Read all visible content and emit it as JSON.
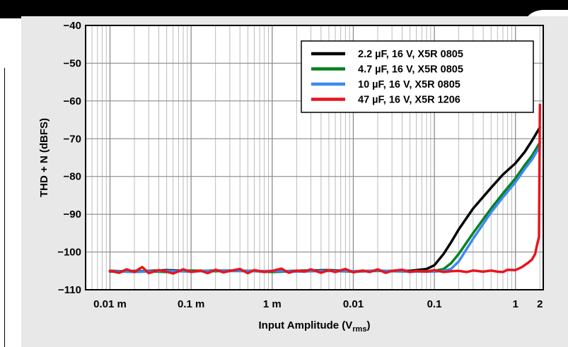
{
  "chart_data": {
    "type": "line",
    "title": "",
    "xlabel": "Input Amplitude (V",
    "xlabel_sub": "rms",
    "xlabel_close": ")",
    "ylabel": "THD + N (dBFS)",
    "x_scale": "log",
    "xlim": [
      5e-06,
      2.2
    ],
    "ylim": [
      -110,
      -40
    ],
    "grid": true,
    "legend_position": "top-right",
    "x_ticks": [
      {
        "value": 1e-05,
        "label": "0.01 m"
      },
      {
        "value": 0.0001,
        "label": "0.1 m"
      },
      {
        "value": 0.001,
        "label": "1 m"
      },
      {
        "value": 0.01,
        "label": "0.01"
      },
      {
        "value": 0.1,
        "label": "0.1"
      },
      {
        "value": 1,
        "label": "1"
      },
      {
        "value": 2,
        "label": "2"
      }
    ],
    "y_ticks": [
      {
        "value": -40,
        "label": "−40"
      },
      {
        "value": -50,
        "label": "−50"
      },
      {
        "value": -60,
        "label": "−60"
      },
      {
        "value": -70,
        "label": "−70"
      },
      {
        "value": -80,
        "label": "−80"
      },
      {
        "value": -90,
        "label": "−90"
      },
      {
        "value": -100,
        "label": "−100"
      },
      {
        "value": -110,
        "label": "−110"
      }
    ],
    "series": [
      {
        "name": "2.2 µF, 16 V, X5R 0805",
        "color": "#000000",
        "x": [
          1e-05,
          2e-05,
          5e-05,
          0.0001,
          0.0002,
          0.0005,
          0.001,
          0.002,
          0.005,
          0.01,
          0.02,
          0.05,
          0.08,
          0.1,
          0.13,
          0.16,
          0.2,
          0.3,
          0.5,
          0.7,
          1.0,
          1.3,
          1.6,
          2.0
        ],
        "y": [
          -105,
          -105.2,
          -104.8,
          -105.1,
          -104.9,
          -105,
          -105.2,
          -105,
          -104.8,
          -105.1,
          -105,
          -105,
          -104.5,
          -103.5,
          -100.5,
          -97.5,
          -94,
          -88.5,
          -83,
          -79.5,
          -76.5,
          -73.5,
          -70.5,
          -67
        ]
      },
      {
        "name": "4.7 µF, 16 V, X5R 0805",
        "color": "#00821e",
        "x": [
          1e-05,
          2e-05,
          5e-05,
          0.0001,
          0.0002,
          0.0005,
          0.001,
          0.002,
          0.005,
          0.01,
          0.02,
          0.05,
          0.1,
          0.13,
          0.16,
          0.2,
          0.3,
          0.5,
          0.7,
          1.0,
          1.3,
          1.6,
          2.0
        ],
        "y": [
          -105.2,
          -105,
          -105.3,
          -104.9,
          -105.1,
          -105,
          -105.3,
          -105.1,
          -105,
          -105.2,
          -105,
          -105.2,
          -105,
          -104.5,
          -103,
          -100.5,
          -95,
          -88.5,
          -84.5,
          -80.5,
          -77,
          -74.5,
          -71
        ]
      },
      {
        "name": "10 µF, 16 V, X5R 0805",
        "color": "#3e88f2",
        "x": [
          1e-05,
          2e-05,
          5e-05,
          0.0001,
          0.0002,
          0.0005,
          0.001,
          0.002,
          0.005,
          0.01,
          0.02,
          0.05,
          0.1,
          0.13,
          0.16,
          0.2,
          0.3,
          0.5,
          0.7,
          1.0,
          1.3,
          1.6,
          2.0
        ],
        "y": [
          -105.1,
          -105.3,
          -105,
          -105.2,
          -104.9,
          -105.1,
          -105,
          -105.2,
          -105,
          -105.1,
          -104.9,
          -105.2,
          -105.2,
          -105,
          -104.5,
          -102.5,
          -96.5,
          -89.5,
          -85.5,
          -81.5,
          -78,
          -75.5,
          -72
        ]
      },
      {
        "name": "47 µF, 16 V, X5R 1206",
        "color": "#e8141e",
        "x": [
          1e-05,
          1.3e-05,
          1.6e-05,
          2e-05,
          2.5e-05,
          3e-05,
          4e-05,
          5e-05,
          6e-05,
          8e-05,
          0.0001,
          0.00013,
          0.00016,
          0.0002,
          0.00025,
          0.0003,
          0.0004,
          0.0005,
          0.0006,
          0.0008,
          0.001,
          0.0013,
          0.0016,
          0.002,
          0.0025,
          0.003,
          0.004,
          0.005,
          0.006,
          0.008,
          0.01,
          0.013,
          0.016,
          0.02,
          0.025,
          0.03,
          0.04,
          0.05,
          0.06,
          0.08,
          0.1,
          0.13,
          0.16,
          0.2,
          0.25,
          0.3,
          0.4,
          0.5,
          0.6,
          0.7,
          0.8,
          1.0,
          1.2,
          1.4,
          1.6,
          1.75,
          1.85,
          1.95,
          2.0
        ],
        "y": [
          -105,
          -105.5,
          -104.6,
          -105.3,
          -104,
          -105.6,
          -104.8,
          -105.2,
          -105.7,
          -104.6,
          -105.3,
          -104.9,
          -105.6,
          -104.7,
          -105.4,
          -105,
          -104.5,
          -105.6,
          -104.8,
          -105.3,
          -105,
          -104.4,
          -105.5,
          -104.9,
          -105.2,
          -104.6,
          -105.5,
          -104.8,
          -105.3,
          -104.5,
          -105.4,
          -104.9,
          -105.3,
          -104.6,
          -105.5,
          -105,
          -104.7,
          -105.3,
          -105,
          -105.2,
          -104.8,
          -105.3,
          -105.1,
          -105,
          -105.3,
          -104.9,
          -105.2,
          -104.9,
          -105.2,
          -105.3,
          -104.7,
          -104.8,
          -104,
          -103,
          -102,
          -100.5,
          -98,
          -96,
          -61
        ]
      }
    ]
  }
}
